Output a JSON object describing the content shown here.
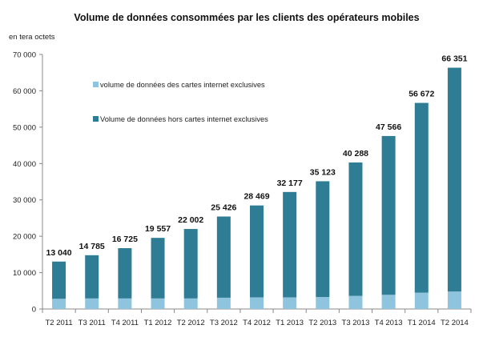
{
  "chart_data": {
    "type": "bar",
    "stacked": true,
    "title": "Volume de données consommées par les clients des opérateurs mobiles",
    "ylabel": "en tera octets",
    "xlabel": "",
    "ylim": [
      0,
      70000
    ],
    "yticks": [
      0,
      10000,
      20000,
      30000,
      40000,
      50000,
      60000,
      70000
    ],
    "ytick_labels": [
      "0",
      "10 000",
      "20 000",
      "30 000",
      "40 000",
      "50 000",
      "60 000",
      "70 000"
    ],
    "grid": false,
    "legend_position": "top-left",
    "categories": [
      "T2 2011",
      "T3 2011",
      "T4 2011",
      "T1 2012",
      "T2 2012",
      "T3 2012",
      "T4 2012",
      "T1 2013",
      "T2 2013",
      "T3 2013",
      "T4 2013",
      "T1 2014",
      "T2 2014"
    ],
    "totals": [
      13040,
      14785,
      16725,
      19557,
      22002,
      25426,
      28469,
      32177,
      35123,
      40288,
      47566,
      56672,
      66351
    ],
    "total_labels": [
      "13 040",
      "14 785",
      "16 725",
      "19 557",
      "22 002",
      "25 426",
      "28 469",
      "32 177",
      "35 123",
      "40 288",
      "47 566",
      "56 672",
      "66 351"
    ],
    "series": [
      {
        "name": "volume de données des cartes internet exclusives",
        "color": "#8fc4de",
        "values": [
          2800,
          2900,
          2900,
          2900,
          2900,
          3100,
          3200,
          3200,
          3300,
          3600,
          3900,
          4500,
          4800
        ]
      },
      {
        "name": "Volume de données hors cartes internet exclusives",
        "color": "#2e7d95",
        "values": [
          10240,
          11885,
          13825,
          16657,
          19102,
          22326,
          25269,
          28977,
          31823,
          36688,
          43666,
          52172,
          61551
        ]
      }
    ]
  }
}
